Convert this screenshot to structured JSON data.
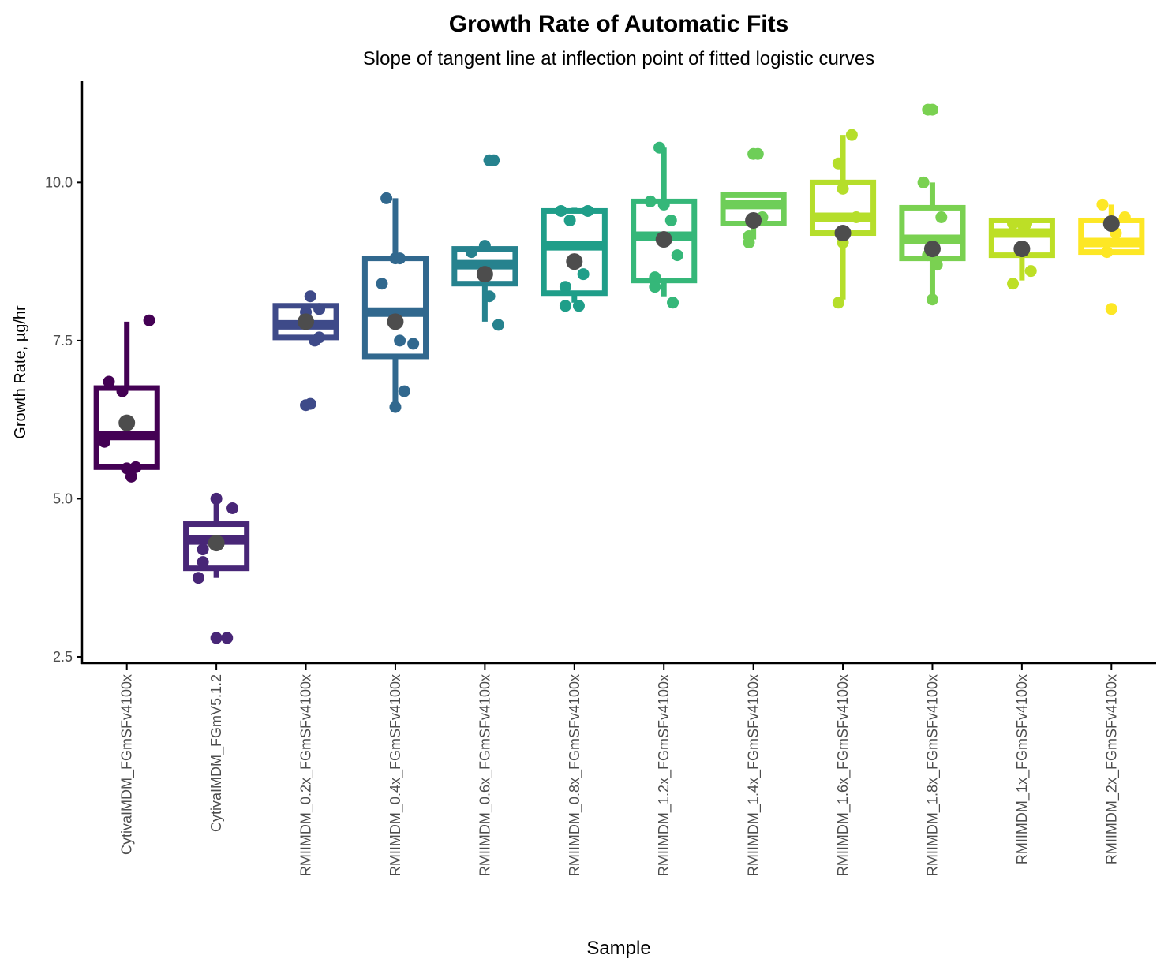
{
  "chart_data": {
    "type": "box",
    "title": "Growth Rate of Automatic Fits",
    "subtitle": "Slope of tangent line at inflection point of fitted logistic curves",
    "xlabel": "Sample",
    "ylabel": "Growth Rate, µg/hr",
    "ylim": [
      2.4,
      11.6
    ],
    "yticks": [
      2.5,
      5.0,
      7.5,
      10.0
    ],
    "ytick_labels": [
      "2.5",
      "5.0",
      "7.5",
      "10.0"
    ],
    "grid": false,
    "legend": "none",
    "mean_marker_color": "#4d4d4d",
    "groups": [
      {
        "name": "CytivaIMDM_FGmSFv4100x",
        "color": "#440154",
        "q1": 5.5,
        "median": 6.0,
        "q3": 6.75,
        "whisker_low": 5.4,
        "whisker_high": 7.8,
        "mean": 6.2,
        "points": [
          [
            0.25,
            7.82
          ],
          [
            -0.2,
            6.85
          ],
          [
            -0.05,
            6.7
          ],
          [
            -0.25,
            5.9
          ],
          [
            0.1,
            5.5
          ],
          [
            0.0,
            5.48
          ],
          [
            0.05,
            5.35
          ]
        ]
      },
      {
        "name": "CytivaIMDM_FGmV5.1.2",
        "color": "#482677",
        "q1": 3.9,
        "median": 4.35,
        "q3": 4.6,
        "whisker_low": 3.75,
        "whisker_high": 5.0,
        "mean": 4.3,
        "points": [
          [
            0.0,
            5.0
          ],
          [
            0.18,
            4.85
          ],
          [
            -0.15,
            4.2
          ],
          [
            -0.15,
            4.0
          ],
          [
            -0.2,
            3.75
          ],
          [
            0.0,
            2.8
          ],
          [
            0.12,
            2.8
          ]
        ]
      },
      {
        "name": "RMIIMDM_0.2x_FGmSFv4100x",
        "color": "#3e4a89",
        "q1": 7.55,
        "median": 7.75,
        "q3": 8.05,
        "whisker_low": 7.55,
        "whisker_high": 8.05,
        "mean": 7.8,
        "points": [
          [
            0.05,
            8.2
          ],
          [
            0.15,
            8.0
          ],
          [
            0.0,
            7.95
          ],
          [
            0.15,
            7.55
          ],
          [
            0.1,
            7.5
          ],
          [
            0.05,
            6.5
          ],
          [
            0.0,
            6.48
          ]
        ]
      },
      {
        "name": "RMIIMDM_0.4x_FGmSFv4100x",
        "color": "#31688e",
        "q1": 7.25,
        "median": 7.95,
        "q3": 8.8,
        "whisker_low": 6.5,
        "whisker_high": 9.75,
        "mean": 7.8,
        "points": [
          [
            -0.1,
            9.75
          ],
          [
            0.0,
            8.8
          ],
          [
            0.05,
            8.8
          ],
          [
            -0.15,
            8.4
          ],
          [
            0.05,
            7.5
          ],
          [
            0.2,
            7.45
          ],
          [
            0.1,
            6.7
          ],
          [
            0.0,
            6.45
          ]
        ]
      },
      {
        "name": "RMIIMDM_0.6x_FGmSFv4100x",
        "color": "#26828e",
        "q1": 8.4,
        "median": 8.7,
        "q3": 8.95,
        "whisker_low": 7.8,
        "whisker_high": 9.0,
        "mean": 8.55,
        "points": [
          [
            0.05,
            10.35
          ],
          [
            0.1,
            10.35
          ],
          [
            0.0,
            9.0
          ],
          [
            -0.15,
            8.9
          ],
          [
            0.05,
            8.2
          ],
          [
            0.15,
            7.75
          ]
        ]
      },
      {
        "name": "RMIIMDM_0.8x_FGmSFv4100x",
        "color": "#1f9e89",
        "q1": 8.25,
        "median": 9.0,
        "q3": 9.55,
        "whisker_low": 8.1,
        "whisker_high": 9.6,
        "mean": 8.75,
        "points": [
          [
            -0.15,
            9.55
          ],
          [
            0.15,
            9.55
          ],
          [
            -0.05,
            9.4
          ],
          [
            0.1,
            8.55
          ],
          [
            -0.1,
            8.35
          ],
          [
            0.05,
            8.05
          ],
          [
            -0.1,
            8.05
          ]
        ]
      },
      {
        "name": "RMIIMDM_1.2x_FGmSFv4100x",
        "color": "#35b779",
        "q1": 8.45,
        "median": 9.15,
        "q3": 9.7,
        "whisker_low": 8.2,
        "whisker_high": 10.55,
        "mean": 9.1,
        "points": [
          [
            -0.05,
            10.55
          ],
          [
            -0.15,
            9.7
          ],
          [
            0.0,
            9.65
          ],
          [
            0.08,
            9.4
          ],
          [
            0.15,
            8.85
          ],
          [
            -0.1,
            8.5
          ],
          [
            -0.1,
            8.35
          ],
          [
            0.1,
            8.1
          ]
        ]
      },
      {
        "name": "RMIIMDM_1.4x_FGmSFv4100x",
        "color": "#6ece58",
        "q1": 9.35,
        "median": 9.65,
        "q3": 9.8,
        "whisker_low": 9.1,
        "whisker_high": 9.8,
        "mean": 9.4,
        "points": [
          [
            0.0,
            10.45
          ],
          [
            0.05,
            10.45
          ],
          [
            0.1,
            9.45
          ],
          [
            -0.05,
            9.15
          ],
          [
            -0.05,
            9.05
          ]
        ]
      },
      {
        "name": "RMIIMDM_1.6x_FGmSFv4100x",
        "color": "#b5de2b",
        "q1": 9.2,
        "median": 9.45,
        "q3": 10.0,
        "whisker_low": 8.15,
        "whisker_high": 10.75,
        "mean": 9.2,
        "points": [
          [
            0.1,
            10.75
          ],
          [
            -0.05,
            10.3
          ],
          [
            0.0,
            9.9
          ],
          [
            0.15,
            9.45
          ],
          [
            0.0,
            9.05
          ],
          [
            -0.05,
            8.1
          ]
        ]
      },
      {
        "name": "RMIIMDM_1.8x_FGmSFv4100x",
        "color": "#7ad151",
        "q1": 8.8,
        "median": 9.1,
        "q3": 9.6,
        "whisker_low": 8.2,
        "whisker_high": 10.0,
        "mean": 8.95,
        "points": [
          [
            -0.05,
            11.15
          ],
          [
            0.0,
            11.15
          ],
          [
            -0.1,
            10.0
          ],
          [
            0.1,
            9.45
          ],
          [
            -0.05,
            8.85
          ],
          [
            0.05,
            8.7
          ],
          [
            0.0,
            8.15
          ]
        ]
      },
      {
        "name": "RMIIMDM_1x_FGmSFv4100x",
        "color": "#bddf26",
        "q1": 8.85,
        "median": 9.2,
        "q3": 9.4,
        "whisker_low": 8.45,
        "whisker_high": 9.4,
        "mean": 8.95,
        "points": [
          [
            -0.1,
            9.35
          ],
          [
            0.0,
            9.35
          ],
          [
            0.05,
            9.35
          ],
          [
            0.1,
            8.6
          ],
          [
            -0.1,
            8.4
          ]
        ]
      },
      {
        "name": "RMIIMDM_2x_FGmSFv4100x",
        "color": "#fde725",
        "q1": 8.9,
        "median": 9.05,
        "q3": 9.4,
        "whisker_low": 8.9,
        "whisker_high": 9.65,
        "mean": 9.35,
        "points": [
          [
            -0.1,
            9.65
          ],
          [
            0.15,
            9.45
          ],
          [
            0.05,
            9.2
          ],
          [
            -0.05,
            8.9
          ],
          [
            0.0,
            8.0
          ]
        ]
      }
    ]
  }
}
